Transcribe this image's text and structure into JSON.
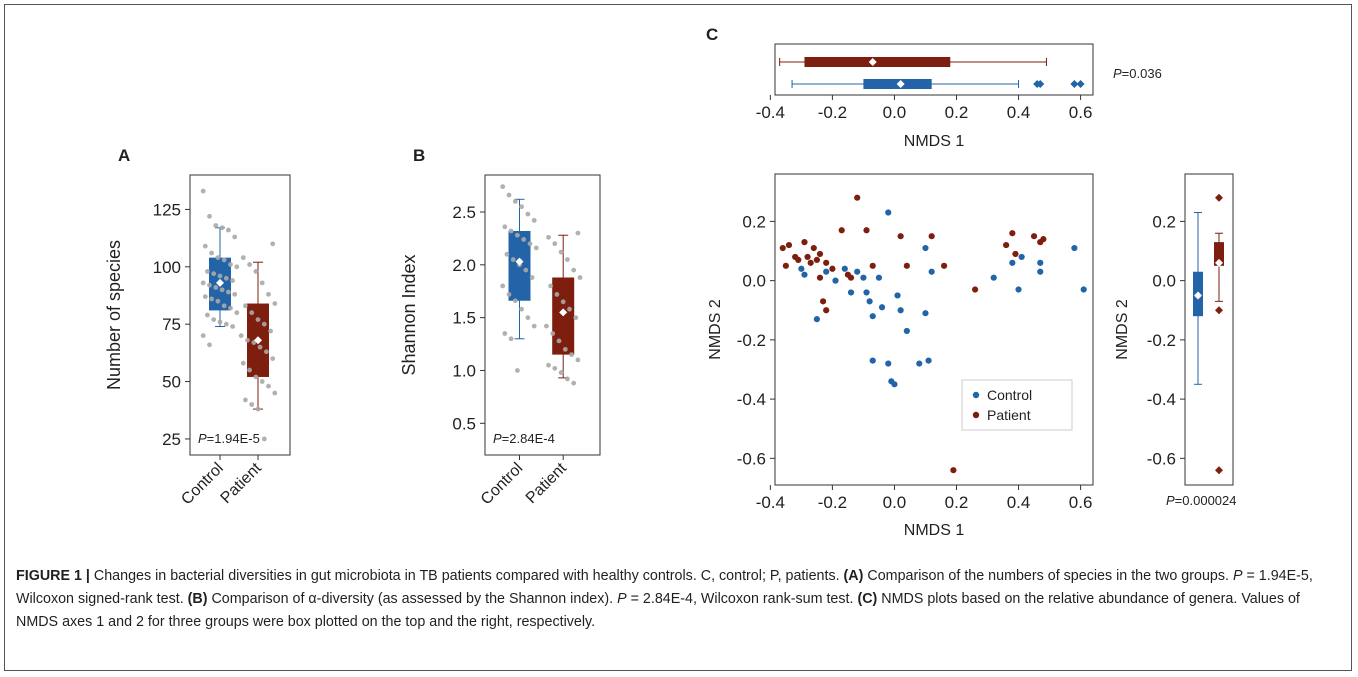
{
  "colors": {
    "control": "#2364a8",
    "patient": "#7e1e0f",
    "jitter": "#a9a9a9",
    "frame": "#555555",
    "text": "#231f20"
  },
  "chart_data": [
    {
      "id": "A",
      "type": "box",
      "panel_label": "A",
      "ylabel": "Number of species",
      "categories": [
        "Control",
        "Patient"
      ],
      "yticks": [
        25,
        50,
        75,
        100,
        125
      ],
      "ylim": [
        18,
        140
      ],
      "boxes": [
        {
          "name": "Control",
          "whisker_low": 74,
          "q1": 81,
          "median": 92,
          "q3": 104,
          "whisker_high": 117,
          "mean": 93,
          "points": [
            133,
            122,
            118,
            117,
            116,
            113,
            109,
            106,
            104,
            103,
            101,
            100,
            98,
            97,
            96,
            95,
            94,
            93,
            92,
            91,
            90,
            89,
            88,
            87,
            86,
            85,
            83,
            82,
            80,
            79,
            77,
            76,
            75,
            74,
            70,
            66
          ]
        },
        {
          "name": "Patient",
          "whisker_low": 38,
          "q1": 52,
          "median": 66,
          "q3": 84,
          "whisker_high": 102,
          "mean": 68,
          "points": [
            110,
            104,
            101,
            98,
            93,
            88,
            84,
            83,
            80,
            77,
            75,
            72,
            70,
            68,
            67,
            65,
            63,
            60,
            58,
            55,
            52,
            50,
            48,
            45,
            42,
            40,
            38,
            25
          ]
        }
      ],
      "annotation": {
        "p_symbol": "P",
        "p_value": "=1.94E-5"
      }
    },
    {
      "id": "B",
      "type": "box",
      "panel_label": "B",
      "ylabel": "Shannon Index",
      "categories": [
        "Control",
        "Patient"
      ],
      "yticks": [
        0.5,
        1.0,
        1.5,
        2.0,
        2.5
      ],
      "yticklabels": [
        "0.5",
        "1.0",
        "1.5",
        "2.0",
        "2.5"
      ],
      "ylim": [
        0.2,
        2.85
      ],
      "boxes": [
        {
          "name": "Control",
          "whisker_low": 1.3,
          "q1": 1.66,
          "median": 2.05,
          "q3": 2.32,
          "whisker_high": 2.62,
          "mean": 2.03,
          "points": [
            2.74,
            2.66,
            2.6,
            2.55,
            2.48,
            2.42,
            2.36,
            2.32,
            2.28,
            2.24,
            2.2,
            2.16,
            2.1,
            2.05,
            2.0,
            1.95,
            1.88,
            1.8,
            1.72,
            1.66,
            1.58,
            1.5,
            1.42,
            1.35,
            1.3,
            1.0
          ]
        },
        {
          "name": "Patient",
          "whisker_low": 0.93,
          "q1": 1.15,
          "median": 1.5,
          "q3": 1.88,
          "whisker_high": 2.28,
          "mean": 1.55,
          "points": [
            2.3,
            2.26,
            2.2,
            2.12,
            2.05,
            1.95,
            1.88,
            1.8,
            1.72,
            1.65,
            1.58,
            1.5,
            1.42,
            1.35,
            1.28,
            1.2,
            1.15,
            1.1,
            1.05,
            1.02,
            0.98,
            0.92,
            0.88
          ]
        }
      ],
      "annotation": {
        "p_symbol": "P",
        "p_value": "=2.84E-4"
      }
    },
    {
      "id": "C-scatter",
      "type": "scatter",
      "panel_label": "C",
      "xlabel": "NMDS 1",
      "ylabel": "NMDS 2",
      "xlim": [
        -0.385,
        0.64
      ],
      "ylim": [
        -0.69,
        0.36
      ],
      "xticks": [
        -0.4,
        -0.2,
        0.0,
        0.2,
        0.4,
        0.6
      ],
      "xticklabels": [
        "-0.4",
        "-0.2",
        "0.0",
        "0.2",
        "0.4",
        "0.6"
      ],
      "yticks": [
        -0.6,
        -0.4,
        -0.2,
        0.0,
        0.2
      ],
      "yticklabels": [
        "-0.6",
        "-0.4",
        "-0.2",
        "0.0",
        "0.2"
      ],
      "legend": {
        "position": "lower-right",
        "entries": [
          "Control",
          "Patient"
        ]
      },
      "series": [
        {
          "name": "Control",
          "points": [
            [
              -0.3,
              0.04
            ],
            [
              -0.29,
              0.02
            ],
            [
              -0.25,
              -0.13
            ],
            [
              -0.22,
              0.03
            ],
            [
              -0.19,
              0.0
            ],
            [
              -0.16,
              0.04
            ],
            [
              -0.14,
              -0.04
            ],
            [
              -0.12,
              0.03
            ],
            [
              -0.1,
              0.01
            ],
            [
              -0.09,
              -0.04
            ],
            [
              -0.08,
              -0.07
            ],
            [
              -0.07,
              -0.12
            ],
            [
              -0.05,
              0.01
            ],
            [
              -0.04,
              -0.09
            ],
            [
              -0.07,
              -0.27
            ],
            [
              -0.02,
              -0.28
            ],
            [
              -0.01,
              -0.34
            ],
            [
              0.0,
              -0.35
            ],
            [
              0.01,
              -0.05
            ],
            [
              -0.02,
              0.23
            ],
            [
              0.02,
              -0.1
            ],
            [
              0.04,
              -0.17
            ],
            [
              0.08,
              -0.28
            ],
            [
              0.11,
              -0.27
            ],
            [
              0.1,
              -0.11
            ],
            [
              0.12,
              0.03
            ],
            [
              0.1,
              0.11
            ],
            [
              0.32,
              0.01
            ],
            [
              0.38,
              0.06
            ],
            [
              0.41,
              0.08
            ],
            [
              0.4,
              -0.03
            ],
            [
              0.47,
              0.03
            ],
            [
              0.47,
              0.06
            ],
            [
              0.58,
              0.11
            ],
            [
              0.61,
              -0.03
            ]
          ]
        },
        {
          "name": "Patient",
          "points": [
            [
              -0.36,
              0.11
            ],
            [
              -0.34,
              0.12
            ],
            [
              -0.35,
              0.05
            ],
            [
              -0.32,
              0.08
            ],
            [
              -0.31,
              0.07
            ],
            [
              -0.29,
              0.13
            ],
            [
              -0.28,
              0.08
            ],
            [
              -0.27,
              0.06
            ],
            [
              -0.26,
              0.11
            ],
            [
              -0.25,
              0.07
            ],
            [
              -0.24,
              0.09
            ],
            [
              -0.24,
              0.01
            ],
            [
              -0.23,
              -0.07
            ],
            [
              -0.22,
              -0.1
            ],
            [
              -0.22,
              0.06
            ],
            [
              -0.2,
              0.04
            ],
            [
              -0.17,
              0.17
            ],
            [
              -0.15,
              0.02
            ],
            [
              -0.14,
              0.01
            ],
            [
              -0.12,
              0.28
            ],
            [
              -0.09,
              0.17
            ],
            [
              -0.07,
              0.05
            ],
            [
              0.02,
              0.15
            ],
            [
              0.04,
              0.05
            ],
            [
              0.12,
              0.15
            ],
            [
              0.16,
              0.05
            ],
            [
              0.26,
              -0.03
            ],
            [
              0.36,
              0.12
            ],
            [
              0.38,
              0.16
            ],
            [
              0.39,
              0.09
            ],
            [
              0.45,
              0.15
            ],
            [
              0.47,
              0.13
            ],
            [
              0.48,
              0.14
            ],
            [
              0.19,
              -0.64
            ]
          ]
        }
      ]
    },
    {
      "id": "C-top",
      "type": "box",
      "orientation": "horizontal",
      "xlabel": "NMDS 1",
      "xlim": [
        -0.385,
        0.64
      ],
      "xticks": [
        -0.4,
        -0.2,
        0.0,
        0.2,
        0.4,
        0.6
      ],
      "xticklabels": [
        "-0.4",
        "-0.2",
        "0.0",
        "0.2",
        "0.4",
        "0.6"
      ],
      "boxes": [
        {
          "name": "Patient",
          "whisker_low": -0.37,
          "q1": -0.29,
          "median": -0.06,
          "q3": 0.18,
          "whisker_high": 0.49,
          "mean": -0.07,
          "outliers": []
        },
        {
          "name": "Control",
          "whisker_low": -0.33,
          "q1": -0.1,
          "median": 0.04,
          "q3": 0.12,
          "whisker_high": 0.4,
          "mean": 0.02,
          "outliers": [
            0.46,
            0.47,
            0.58,
            0.6
          ]
        }
      ],
      "annotation": {
        "p_symbol": "P",
        "p_value": "=0.036"
      }
    },
    {
      "id": "C-right",
      "type": "box",
      "orientation": "vertical",
      "ylabel": "NMDS 2",
      "ylim": [
        -0.69,
        0.36
      ],
      "yticks": [
        -0.6,
        -0.4,
        -0.2,
        0.0,
        0.2
      ],
      "yticklabels": [
        "-0.6",
        "-0.4",
        "-0.2",
        "0.0",
        "0.2"
      ],
      "boxes": [
        {
          "name": "Control",
          "whisker_low": -0.35,
          "q1": -0.12,
          "median": -0.05,
          "q3": 0.03,
          "whisker_high": 0.23,
          "mean": -0.05,
          "outliers": []
        },
        {
          "name": "Patient",
          "whisker_low": -0.07,
          "q1": 0.05,
          "median": 0.08,
          "q3": 0.13,
          "whisker_high": 0.16,
          "mean": 0.06,
          "outliers": [
            0.28,
            -0.1,
            -0.64
          ]
        }
      ],
      "annotation": {
        "p_symbol": "P",
        "p_value": "=0.000024"
      }
    }
  ],
  "caption": {
    "figure_label": "FIGURE 1 |",
    "intro": " Changes in bacterial diversities in gut microbiota in TB patients compared with healthy controls. C, control; P, patients. ",
    "a_label": "(A)",
    "a_text": " Comparison of the numbers of species in the two groups. ",
    "a_p_symbol": "P",
    "a_p_text": " = 1.94E-5, Wilcoxon signed-rank test. ",
    "b_label": "(B)",
    "b_text": " Comparison of α-diversity (as assessed by the Shannon index). ",
    "b_p_symbol": "P",
    "b_p_text": " = 2.84E-4, Wilcoxon rank-sum test. ",
    "c_label": "(C)",
    "c_text": " NMDS plots based on the relative abundance of genera. Values of NMDS axes 1 and 2 for three groups were box plotted on the top and the right, respectively."
  }
}
